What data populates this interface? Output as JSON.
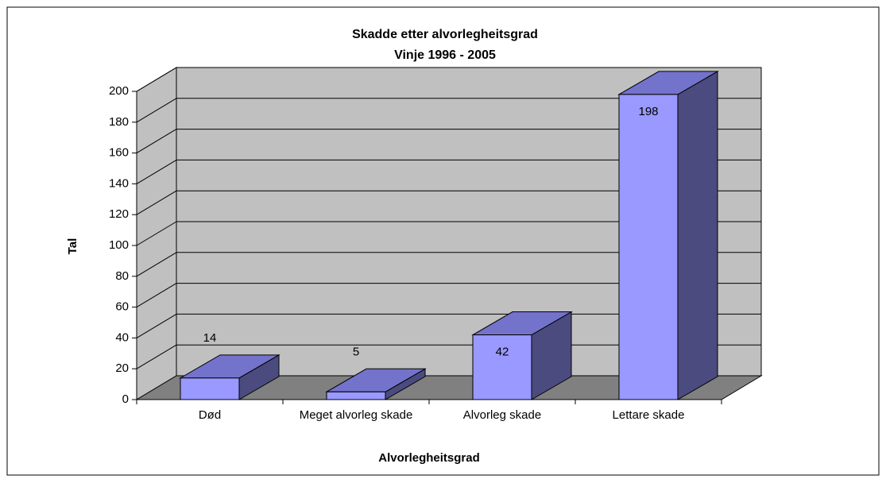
{
  "chart_data": {
    "type": "bar3d",
    "title": "Skadde etter alvorlegheitsgrad",
    "subtitle": "Vinje 1996 - 2005",
    "x_label": "Alvorlegheitsgrad",
    "y_label": "Tal",
    "categories": [
      "Død",
      "Meget alvorleg skade",
      "Alvorleg skade",
      "Lettare skade"
    ],
    "values": [
      14,
      5,
      42,
      198
    ],
    "color": "#9999ff",
    "top_color": "#7373cc",
    "side_color": "#4b4b80",
    "ylim": [
      0,
      200
    ],
    "yticks": [
      0,
      20,
      40,
      60,
      80,
      100,
      120,
      140,
      160,
      180,
      200
    ],
    "grid": true
  }
}
